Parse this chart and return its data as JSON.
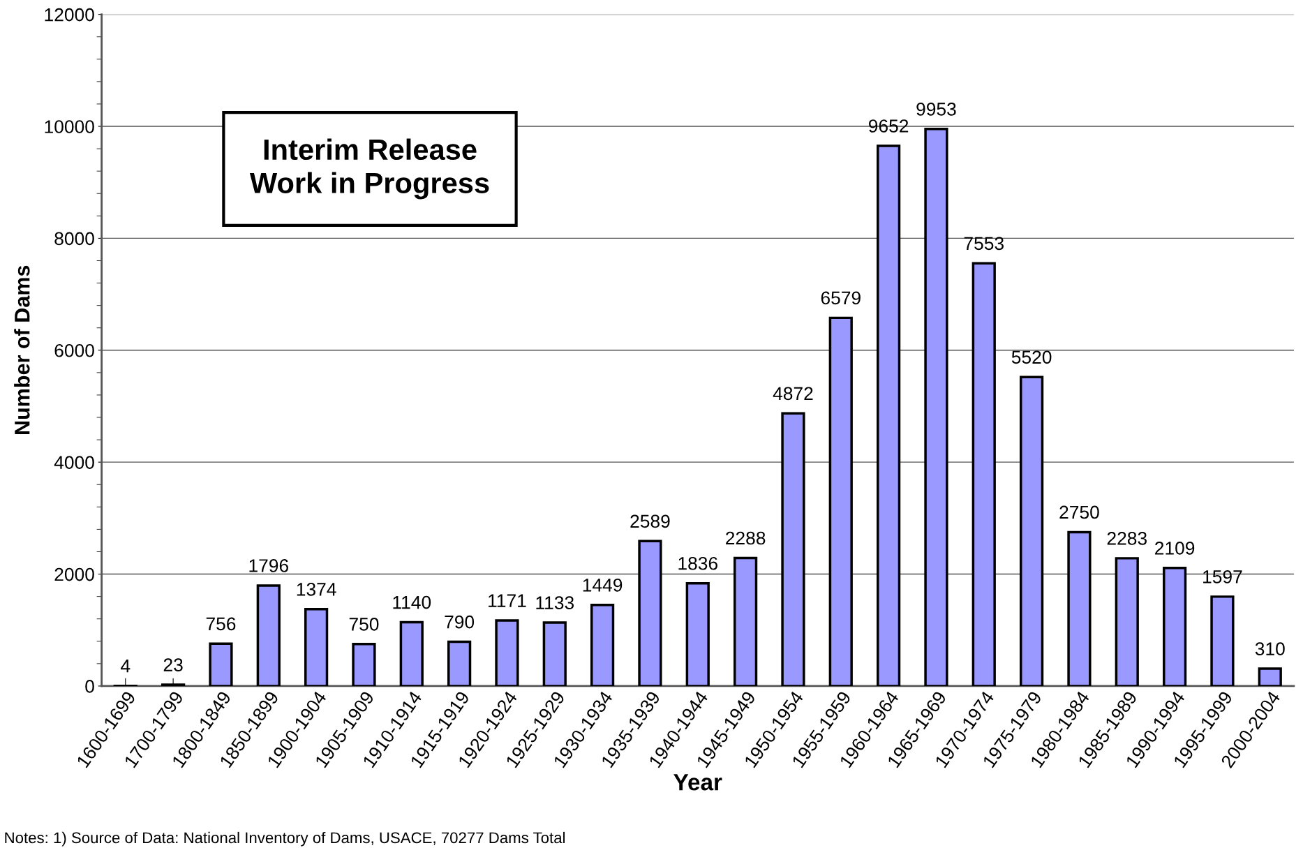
{
  "chart_data": {
    "type": "bar",
    "xlabel": "Year",
    "ylabel": "Number of Dams",
    "categories": [
      "1600-1699",
      "1700-1799",
      "1800-1849",
      "1850-1899",
      "1900-1904",
      "1905-1909",
      "1910-1914",
      "1915-1919",
      "1920-1924",
      "1925-1929",
      "1930-1934",
      "1935-1939",
      "1940-1944",
      "1945-1949",
      "1950-1954",
      "1955-1959",
      "1960-1964",
      "1965-1969",
      "1970-1974",
      "1975-1979",
      "1980-1984",
      "1985-1989",
      "1990-1994",
      "1995-1999",
      "2000-2004"
    ],
    "values": [
      4,
      23,
      756,
      1796,
      1374,
      750,
      1140,
      790,
      1171,
      1133,
      1449,
      2589,
      1836,
      2288,
      4872,
      6579,
      9652,
      9953,
      7553,
      5520,
      2750,
      2283,
      2109,
      1597,
      310
    ],
    "color": "#9999ff",
    "data_labels": true,
    "grid": "y",
    "ylim": [
      0,
      12000
    ],
    "yticks": [
      0,
      2000,
      4000,
      6000,
      8000,
      10000,
      12000
    ],
    "annotations": [
      "Interim Release\nWork in Progress",
      "Notes: 1) Source of Data: National Inventory of Dams, USACE, 70277 Dams Total"
    ]
  }
}
